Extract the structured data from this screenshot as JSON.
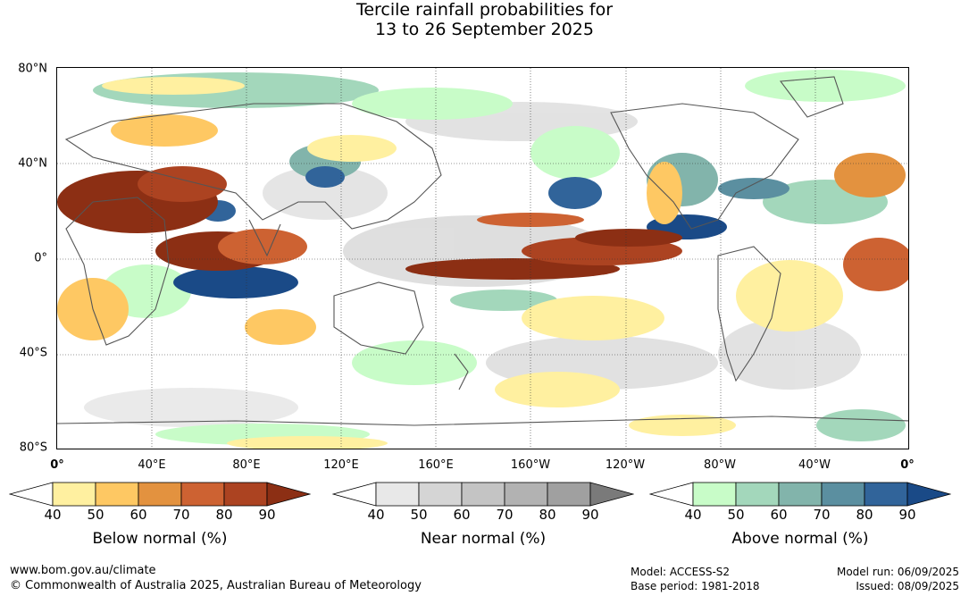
{
  "title": {
    "line1": "Tercile rainfall probabilities for",
    "line2": "13 to 26 September 2025"
  },
  "map": {
    "lat_labels": [
      "80°N",
      "40°N",
      "0°",
      "40°S",
      "80°S"
    ],
    "lon_labels": [
      "0°",
      "40°E",
      "80°E",
      "120°E",
      "160°E",
      "160°W",
      "120°W",
      "80°W",
      "40°W",
      "0°"
    ]
  },
  "legends": [
    {
      "title": "Below normal (%)",
      "ticks": [
        "40",
        "50",
        "60",
        "70",
        "80",
        "90"
      ],
      "colors": [
        "#ffffff",
        "#fff0a0",
        "#fec863",
        "#e3923f",
        "#cd6232",
        "#ac4321",
        "#8c2f14"
      ]
    },
    {
      "title": "Near normal (%)",
      "ticks": [
        "40",
        "50",
        "60",
        "70",
        "80",
        "90"
      ],
      "colors": [
        "#ffffff",
        "#e8e8e8",
        "#d5d5d5",
        "#c4c4c4",
        "#b2b2b2",
        "#a0a0a0",
        "#7a7a7a"
      ]
    },
    {
      "title": "Above normal (%)",
      "ticks": [
        "40",
        "50",
        "60",
        "70",
        "80",
        "90"
      ],
      "colors": [
        "#ffffff",
        "#c8fcc8",
        "#a3d7bb",
        "#82b4ab",
        "#5b8fa0",
        "#31649a",
        "#1a4a87"
      ]
    }
  ],
  "footer": {
    "website": "www.bom.gov.au/climate",
    "copyright": "© Commonwealth of Australia 2025, Australian Bureau of Meteorology",
    "model": "Model: ACCESS-S2",
    "base_period": "Base period: 1981-2018",
    "model_run": "Model run: 06/09/2025",
    "issued": "Issued: 08/09/2025"
  }
}
